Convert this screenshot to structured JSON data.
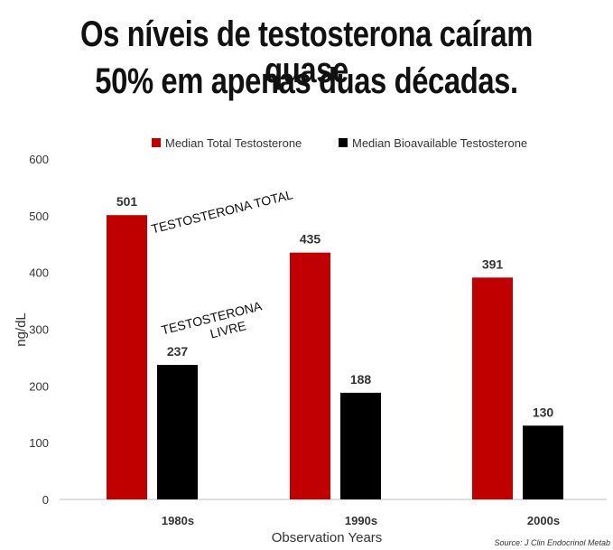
{
  "headline": {
    "line1": "Os níveis de testosterona caíram quase",
    "line2": "50% em apenas duas décadas."
  },
  "annotations": {
    "total": "TESTOSTERONA TOTAL",
    "free_line1": "TESTOSTERONA",
    "free_line2": "LIVRE"
  },
  "source": "Source: J Clin Endocrinol Metab",
  "colors": {
    "total": "#c00000",
    "bioavailable": "#000000",
    "grid": "#d9d9d9",
    "text": "#333333"
  },
  "chart_data": {
    "type": "bar",
    "categories": [
      "1980s",
      "1990s",
      "2000s"
    ],
    "series": [
      {
        "name": "Median Total Testosterone",
        "values": [
          501,
          435,
          391
        ]
      },
      {
        "name": "Median Bioavailable Testosterone",
        "values": [
          237,
          188,
          130
        ]
      }
    ],
    "xlabel": "Observation Years",
    "ylabel": "ng/dL",
    "ylim": [
      0,
      600
    ],
    "yticks": [
      "0",
      "100",
      "200",
      "300",
      "400",
      "500",
      "600"
    ],
    "grid": false,
    "legend": "top"
  }
}
